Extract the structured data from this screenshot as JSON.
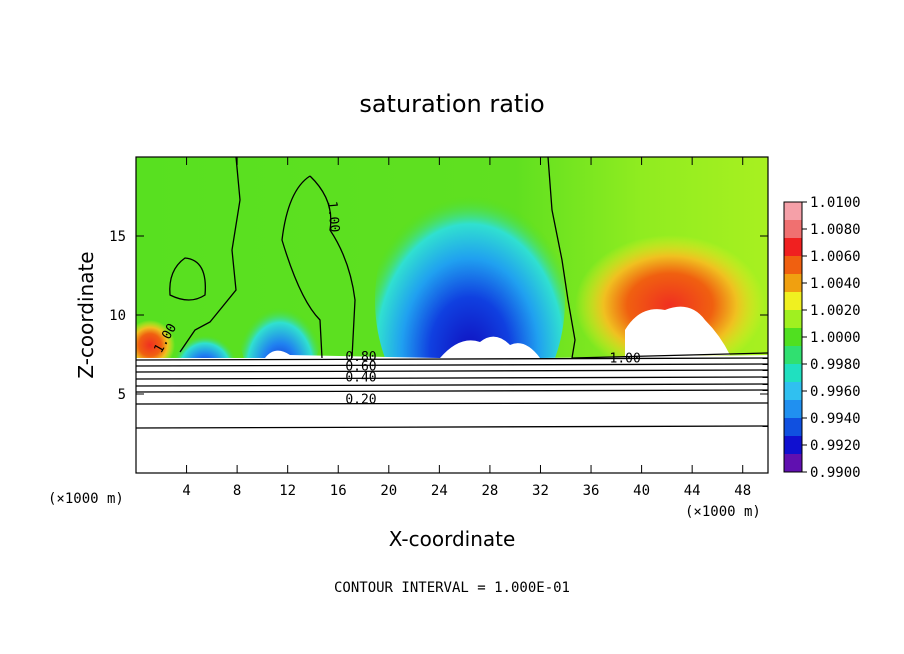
{
  "chart_data": {
    "type": "heatmap",
    "title": "saturation ratio",
    "xlabel": "X-coordinate",
    "ylabel": "Z-coordinate",
    "x_unit_left": "(×1000 m)",
    "x_unit_right": "(×1000 m)",
    "xlim": [
      0,
      50
    ],
    "ylim": [
      0,
      20
    ],
    "x_ticks": [
      "4",
      "8",
      "12",
      "16",
      "20",
      "24",
      "28",
      "32",
      "36",
      "40",
      "44",
      "48"
    ],
    "y_ticks": [
      "5",
      "10",
      "15"
    ],
    "footnote": "CONTOUR INTERVAL = 1.000E-01",
    "colorbar": {
      "labels": [
        "1.0100",
        "1.0080",
        "1.0060",
        "1.0040",
        "1.0020",
        "1.0000",
        "0.9980",
        "0.9960",
        "0.9940",
        "0.9920",
        "0.9900"
      ],
      "colors": [
        "#f5a0a8",
        "#f07070",
        "#f02020",
        "#f06010",
        "#f0a010",
        "#f0f020",
        "#a0f020",
        "#50e020",
        "#30e070",
        "#20e0c0",
        "#30c0f0",
        "#2090f0",
        "#1050e0",
        "#1010d0",
        "#6010b0"
      ]
    },
    "contour_labels": [
      {
        "text": "1.00",
        "x": 15.3,
        "y": 16.2,
        "rotate": 85
      },
      {
        "text": "1.00",
        "x": 2.6,
        "y": 8.4,
        "rotate": -60
      },
      {
        "text": "1.00",
        "x": 38.7,
        "y": 7.0,
        "rotate": 0
      },
      {
        "text": "0.80",
        "x": 17.8,
        "y": 7.1,
        "rotate": 0
      },
      {
        "text": "0.60",
        "x": 17.8,
        "y": 6.5,
        "rotate": 0
      },
      {
        "text": "0.40",
        "x": 17.8,
        "y": 5.8,
        "rotate": 0
      },
      {
        "text": "0.20",
        "x": 17.8,
        "y": 4.4,
        "rotate": 0
      }
    ]
  }
}
